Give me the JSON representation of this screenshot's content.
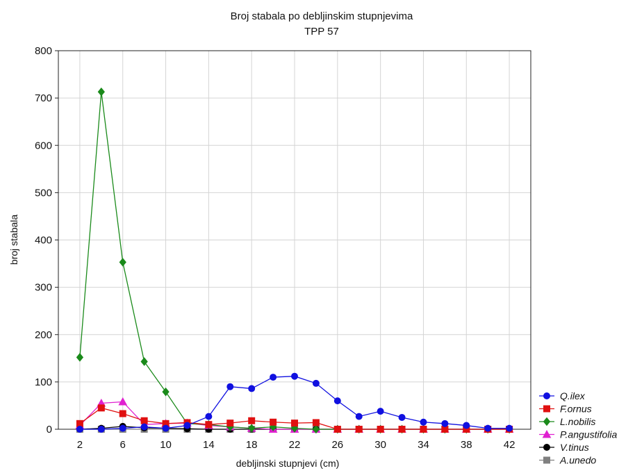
{
  "chart_data": {
    "type": "line",
    "title": "Broj stabala po debljinskim stupnjevima",
    "subtitle": "TPP 57",
    "xlabel": "debljinski stupnjevi (cm)",
    "ylabel": "broj stabala",
    "x": [
      2,
      4,
      6,
      8,
      10,
      12,
      14,
      16,
      18,
      20,
      22,
      24,
      26,
      28,
      30,
      32,
      34,
      36,
      38,
      40,
      42
    ],
    "xticks": [
      2,
      6,
      10,
      14,
      18,
      22,
      26,
      30,
      34,
      38,
      42
    ],
    "xlim": [
      0,
      44
    ],
    "yticks": [
      0,
      100,
      200,
      300,
      400,
      500,
      600,
      700,
      800
    ],
    "ylim": [
      0,
      800
    ],
    "grid": true,
    "legend_position": "bottom-right",
    "series": [
      {
        "name": "Q.ilex",
        "color": "#1010e0",
        "marker": "circle",
        "values": [
          0,
          0,
          2,
          5,
          2,
          8,
          27,
          90,
          86,
          110,
          112,
          97,
          60,
          27,
          38,
          25,
          15,
          12,
          8,
          2,
          2
        ]
      },
      {
        "name": "F.ornus",
        "color": "#e01010",
        "marker": "square",
        "values": [
          12,
          45,
          33,
          18,
          12,
          14,
          10,
          13,
          18,
          15,
          13,
          14,
          0,
          0,
          0,
          0,
          0,
          0,
          0,
          0,
          0
        ]
      },
      {
        "name": "L.nobilis",
        "color": "#1a8a1a",
        "marker": "diamond",
        "values": [
          152,
          713,
          353,
          143,
          79,
          12,
          10,
          5,
          2,
          5,
          2,
          0,
          0,
          0,
          0,
          0,
          0,
          0,
          0,
          0,
          0
        ]
      },
      {
        "name": "P.angustifolia",
        "color": "#e020d0",
        "marker": "triangle",
        "values": [
          8,
          55,
          58,
          10,
          12,
          13,
          8,
          5,
          2,
          0,
          0,
          0,
          0,
          0,
          0,
          0,
          0,
          0,
          0,
          0,
          0
        ]
      },
      {
        "name": "V.tinus",
        "color": "#000000",
        "marker": "circle",
        "values": [
          0,
          2,
          6,
          3,
          2,
          1,
          0,
          0,
          0,
          0,
          0,
          0,
          0,
          0,
          0,
          0,
          0,
          0,
          0,
          0,
          0
        ]
      },
      {
        "name": "A.unedo",
        "color": "#808080",
        "marker": "square",
        "values": [
          0,
          0,
          0,
          0,
          0,
          0,
          0,
          0,
          0,
          0,
          0,
          0,
          0,
          0,
          0,
          0,
          0,
          0,
          0,
          0,
          0
        ]
      }
    ]
  }
}
